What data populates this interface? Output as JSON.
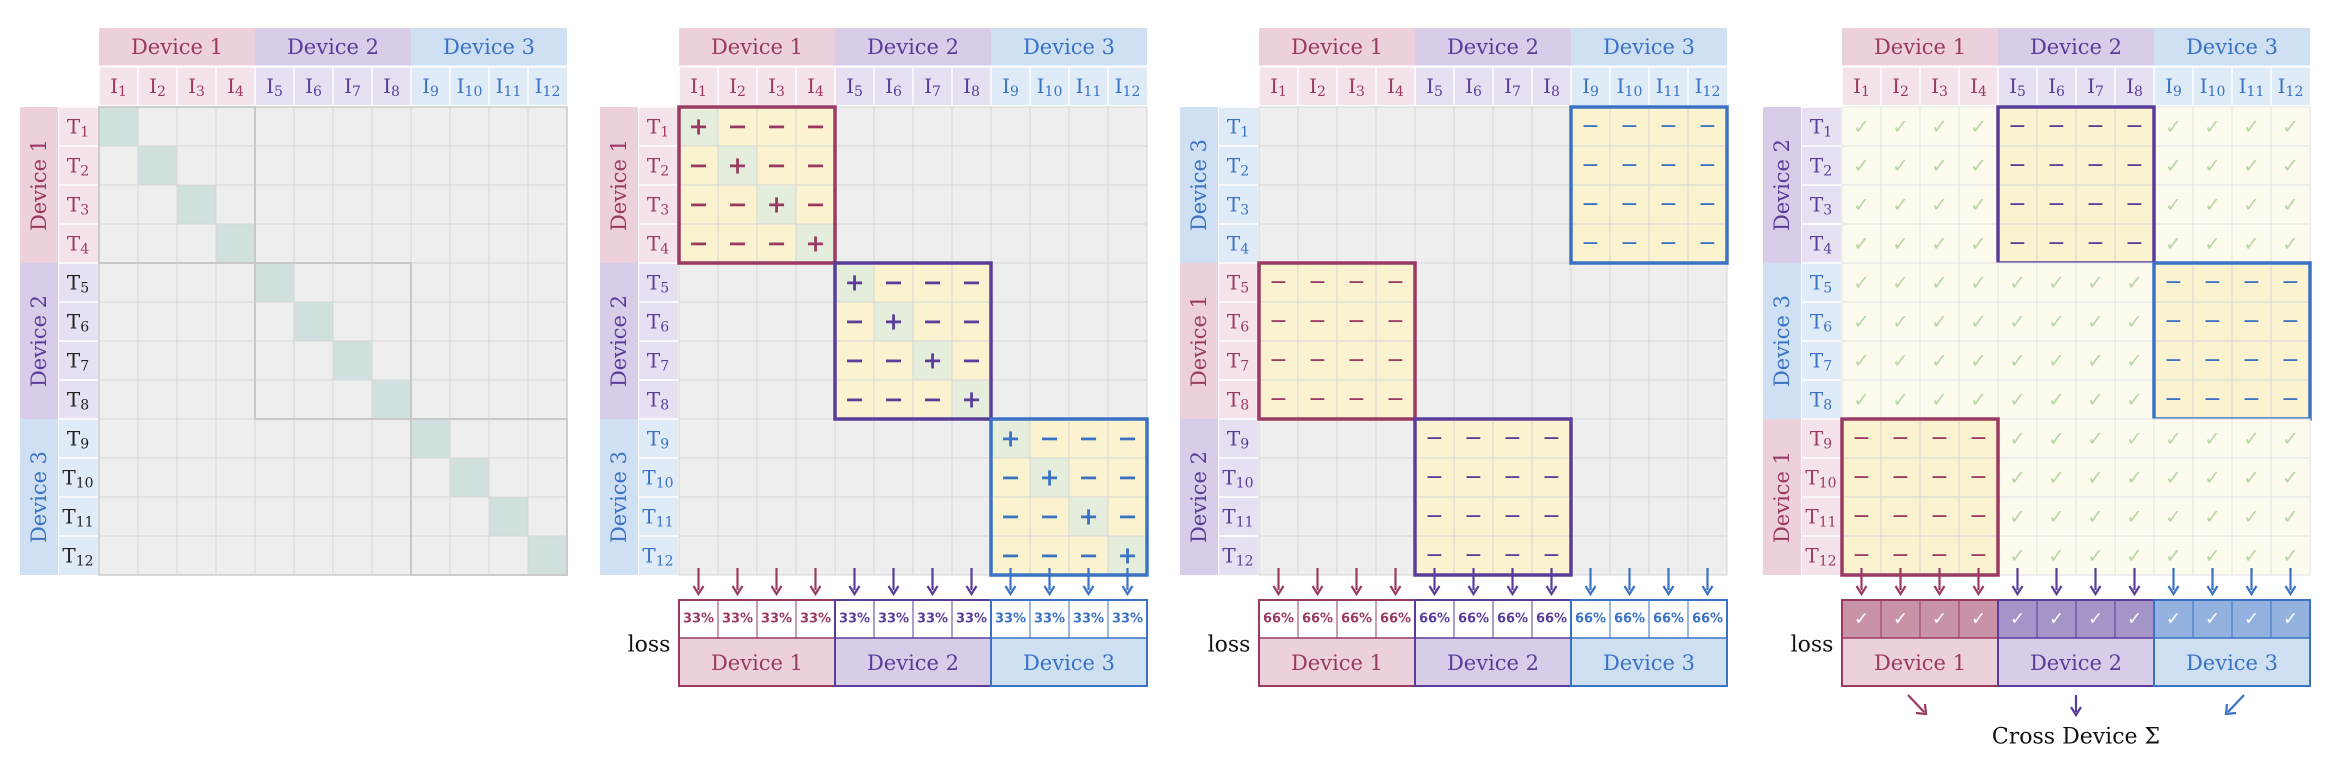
{
  "devices": [
    "Device 1",
    "Device 2",
    "Device 3"
  ],
  "image_labels": [
    "I1",
    "I2",
    "I3",
    "I4",
    "I5",
    "I6",
    "I7",
    "I8",
    "I9",
    "I10",
    "I11",
    "I12"
  ],
  "text_labels": [
    "T1",
    "T2",
    "T3",
    "T4",
    "T5",
    "T6",
    "T7",
    "T8",
    "T9",
    "T10",
    "T11",
    "T12"
  ],
  "colors": {
    "device1": "#9a3a62",
    "device1_bg": "#ecd0dc",
    "device1_sub": "#f4e3ea",
    "device2": "#5a3d9a",
    "device2_bg": "#d8cde8",
    "device2_sub": "#e7e0f2",
    "device3": "#3a72c4",
    "device3_bg": "#cfe0f2",
    "device3_sub": "#e0ebf8",
    "grid": "#eeeeee",
    "diag": "#cfe0df",
    "block": "#fbf2cf",
    "dim": "#fdfaee",
    "check": "#b8d8a8"
  },
  "panels": [
    {
      "id": "panel-1",
      "row_order": [
        "Device 1",
        "Device 2",
        "Device 3"
      ]
    },
    {
      "id": "panel-2",
      "row_order": [
        "Device 1",
        "Device 2",
        "Device 3"
      ],
      "loss_label": "loss",
      "loss_values": [
        "33%",
        "33%",
        "33%",
        "33%",
        "33%",
        "33%",
        "33%",
        "33%",
        "33%",
        "33%",
        "33%",
        "33%"
      ]
    },
    {
      "id": "panel-3",
      "row_order": [
        "Device 3",
        "Device 1",
        "Device 2"
      ],
      "loss_label": "loss",
      "loss_values": [
        "66%",
        "66%",
        "66%",
        "66%",
        "66%",
        "66%",
        "66%",
        "66%",
        "66%",
        "66%",
        "66%",
        "66%"
      ]
    },
    {
      "id": "panel-4",
      "row_order": [
        "Device 2",
        "Device 3",
        "Device 1"
      ],
      "loss_label": "loss",
      "loss_values": [
        "✓",
        "✓",
        "✓",
        "✓",
        "✓",
        "✓",
        "✓",
        "✓",
        "✓",
        "✓",
        "✓",
        "✓"
      ],
      "footer": "Cross Device Σ"
    }
  ],
  "symbols": {
    "positive": "+",
    "negative": "−",
    "check": "✓"
  }
}
